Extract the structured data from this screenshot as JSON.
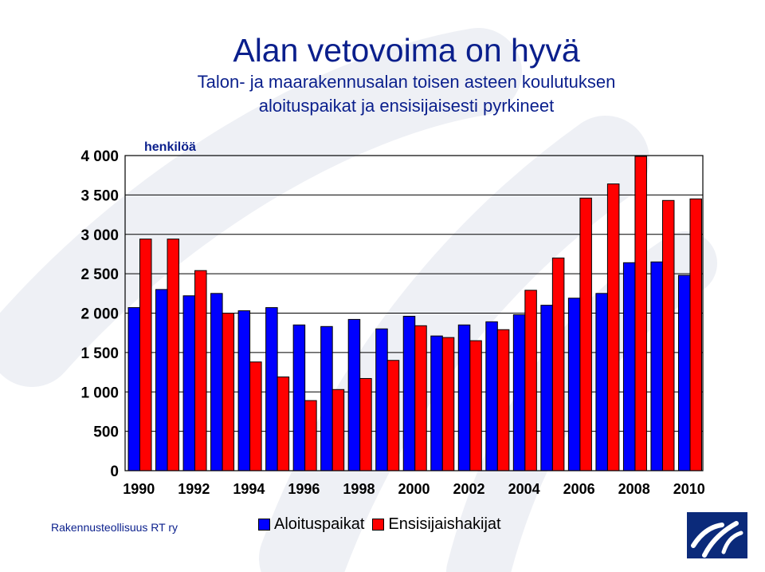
{
  "colors": {
    "series1": "#0000ff",
    "series2": "#ff0000",
    "text": "#0a1f8c",
    "logo": "#0b2a7a",
    "watermark": "#eef0f5"
  },
  "header": {
    "title": "Alan vetovoima on hyvä",
    "subtitle_line1": "Talon- ja maarakennusalan toisen asteen koulutuksen",
    "subtitle_line2": "aloituspaikat  ja ensisijaisesti pyrkineet"
  },
  "footer": {
    "source": "Rakennusteollisuus RT ry",
    "logo_icon": "rt-logo-icon"
  },
  "chart_data": {
    "type": "bar",
    "unit_label": "henkilöä",
    "categories": [
      "1990",
      "1991",
      "1992",
      "1993",
      "1994",
      "1995",
      "1996",
      "1997",
      "1998",
      "1999",
      "2000",
      "2001",
      "2002",
      "2003",
      "2004",
      "2005",
      "2006",
      "2007",
      "2008",
      "2009",
      "2010"
    ],
    "x_tick_labels": [
      "1990",
      "1992",
      "1994",
      "1996",
      "1998",
      "2000",
      "2002",
      "2004",
      "2006",
      "2008",
      "2010"
    ],
    "y_tick_labels": [
      "0",
      "500",
      "1 000",
      "1 500",
      "2 000",
      "2 500",
      "3 000",
      "3 500",
      "4 000"
    ],
    "ylim": [
      0,
      4000
    ],
    "y_step": 500,
    "grid": true,
    "legend_position": "bottom",
    "series": [
      {
        "name": "Aloituspaikat",
        "values": [
          2070,
          2300,
          2220,
          2250,
          2030,
          2070,
          1850,
          1830,
          1920,
          1800,
          1960,
          1710,
          1850,
          1890,
          1980,
          2100,
          2190,
          2250,
          2640,
          2650,
          2480
        ]
      },
      {
        "name": "Ensisijaishakijat",
        "values": [
          2940,
          2940,
          2540,
          2000,
          1380,
          1190,
          890,
          1030,
          1170,
          1400,
          1840,
          1690,
          1650,
          1790,
          2290,
          2700,
          3460,
          3640,
          3990,
          3430,
          3450
        ]
      }
    ]
  }
}
